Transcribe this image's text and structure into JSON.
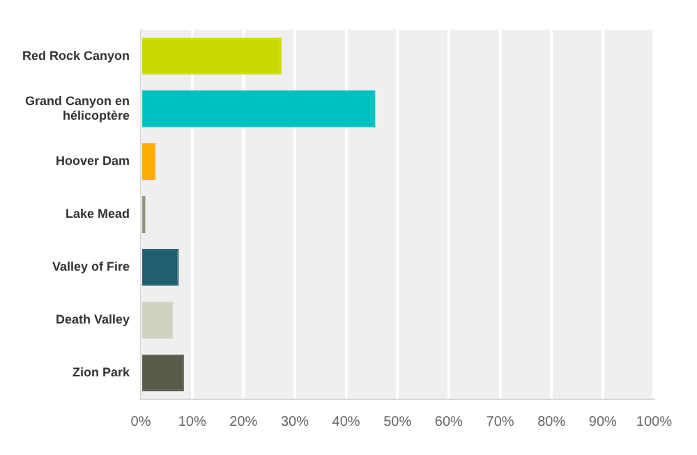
{
  "chart_data": {
    "type": "bar",
    "orientation": "horizontal",
    "categories": [
      "Red Rock Canyon",
      "Grand Canyon en hélicoptère",
      "Hoover Dam",
      "Lake Mead",
      "Valley of Fire",
      "Death Valley",
      "Zion Park"
    ],
    "values": [
      27.4,
      45.7,
      2.9,
      0.9,
      7.4,
      6.3,
      8.4
    ],
    "colors": [
      "#c8d900",
      "#00c0c0",
      "#ffad00",
      "#8b8f78",
      "#1f5f6e",
      "#d0d2c0",
      "#5a5a48"
    ],
    "xlim": [
      0,
      100
    ],
    "xticks": [
      {
        "value": 0,
        "label": "0%"
      },
      {
        "value": 10,
        "label": "10%"
      },
      {
        "value": 20,
        "label": "20%"
      },
      {
        "value": 30,
        "label": "30%"
      },
      {
        "value": 40,
        "label": "40%"
      },
      {
        "value": 50,
        "label": "50%"
      },
      {
        "value": 60,
        "label": "60%"
      },
      {
        "value": 70,
        "label": "70%"
      },
      {
        "value": 80,
        "label": "80%"
      },
      {
        "value": 90,
        "label": "90%"
      },
      {
        "value": 100,
        "label": "100%"
      }
    ],
    "grid": "x",
    "legend": false
  }
}
